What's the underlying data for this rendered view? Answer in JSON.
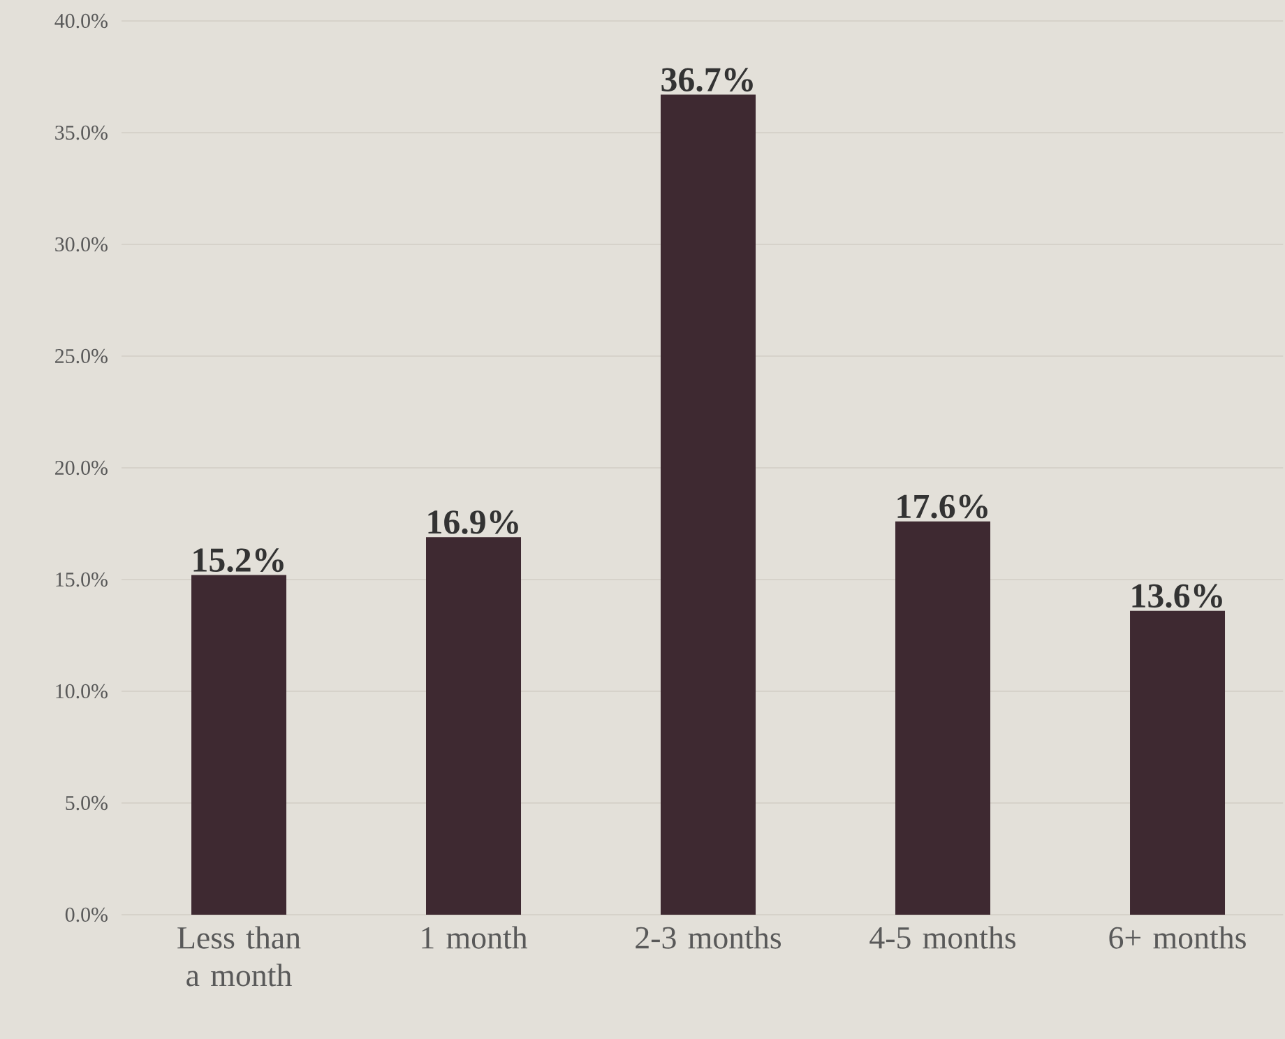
{
  "chart_data": {
    "type": "bar",
    "categories": [
      "Less than a month",
      "1 month",
      "2-3 months",
      "4-5 months",
      "6+ months"
    ],
    "values": [
      15.2,
      16.9,
      36.7,
      17.6,
      13.6
    ],
    "value_labels": [
      "15.2%",
      "16.9%",
      "36.7%",
      "17.6%",
      "13.6%"
    ],
    "color": "#3e2931",
    "ylim": [
      0,
      40
    ],
    "yticks": [
      {
        "value": 0,
        "label": "0.0%"
      },
      {
        "value": 5,
        "label": "5.0%"
      },
      {
        "value": 10,
        "label": "10.0%"
      },
      {
        "value": 15,
        "label": "15.0%"
      },
      {
        "value": 20,
        "label": "20.0%"
      },
      {
        "value": 25,
        "label": "25.0%"
      },
      {
        "value": 30,
        "label": "30.0%"
      },
      {
        "value": 35,
        "label": "35.0%"
      },
      {
        "value": 40,
        "label": "40.0%"
      }
    ],
    "grid": "y"
  }
}
